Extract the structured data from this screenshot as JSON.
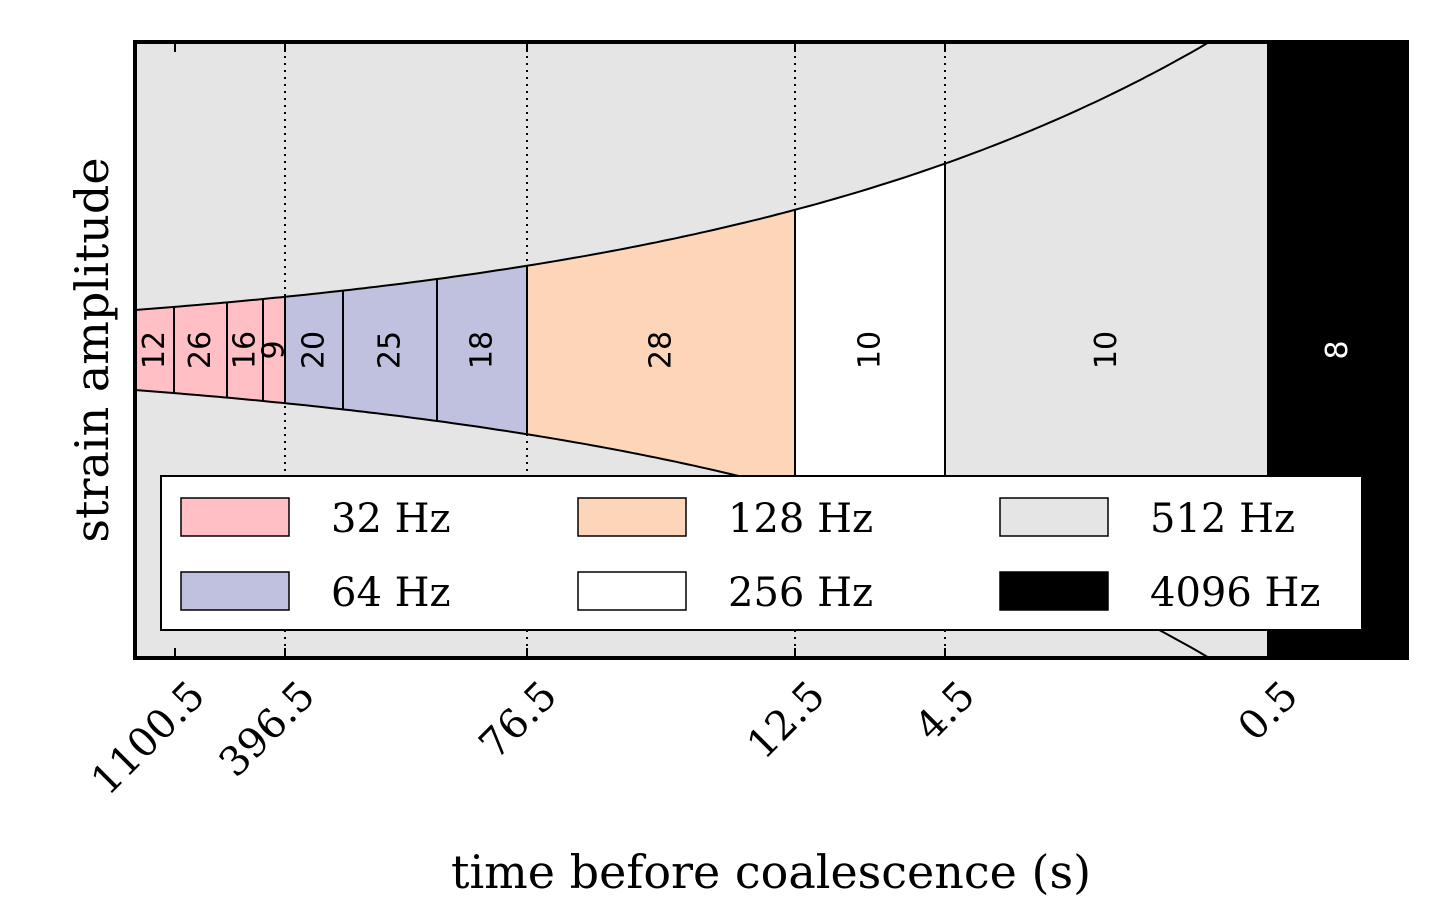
{
  "chart_data": {
    "type": "area",
    "xlabel": "time before coalescence (s)",
    "ylabel": "strain amplitude",
    "x_scale": "log",
    "x_ticks": [
      "1100.5",
      "396.5",
      "76.5",
      "12.5",
      "4.5",
      "0.5"
    ],
    "bands": [
      {
        "rate": "32 Hz",
        "segments": [
          {
            "duration": 12
          },
          {
            "duration": 26
          },
          {
            "duration": 16
          },
          {
            "duration": 9
          }
        ]
      },
      {
        "rate": "64 Hz",
        "segments": [
          {
            "duration": 20
          },
          {
            "duration": 25
          },
          {
            "duration": 18
          }
        ]
      },
      {
        "rate": "128 Hz",
        "segments": [
          {
            "duration": 28
          }
        ]
      },
      {
        "rate": "256 Hz",
        "segments": [
          {
            "duration": 10
          }
        ]
      },
      {
        "rate": "512 Hz",
        "segments": [
          {
            "duration": 10
          }
        ]
      },
      {
        "rate": "4096 Hz",
        "segments": [
          {
            "duration": 8
          }
        ]
      }
    ],
    "legend": [
      {
        "label": "32 Hz",
        "color": "#ffbfc4"
      },
      {
        "label": "128 Hz",
        "color": "#fdd5b8"
      },
      {
        "label": "512 Hz",
        "color": "#e5e5e5"
      },
      {
        "label": "64 Hz",
        "color": "#bfc1de"
      },
      {
        "label": "256 Hz",
        "color": "#ffffff"
      },
      {
        "label": "4096 Hz",
        "color": "#000000"
      }
    ],
    "legend_position": "bottom",
    "background_color": "#e5e5e5"
  }
}
